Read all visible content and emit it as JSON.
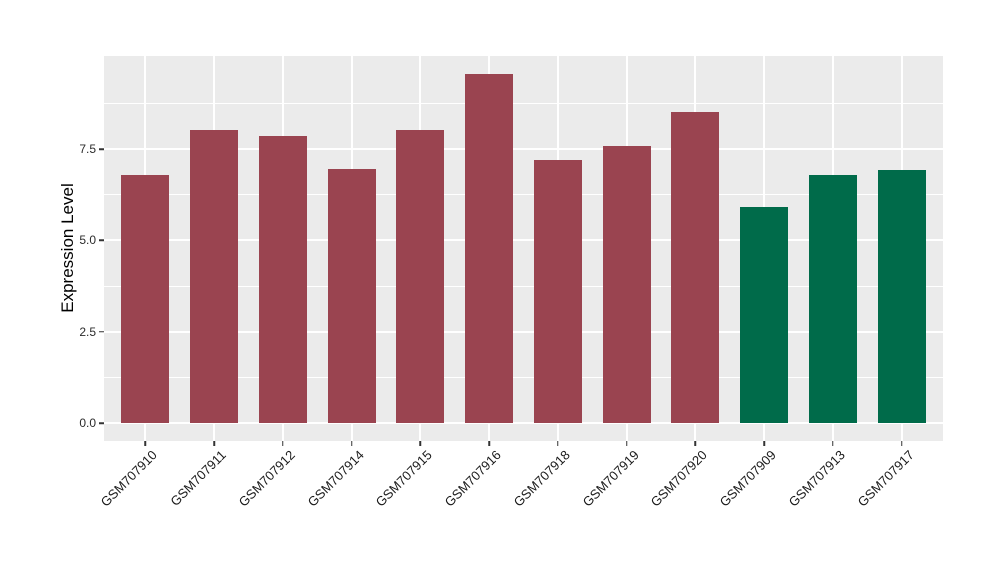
{
  "chart_data": {
    "type": "bar",
    "title": "",
    "xlabel": "",
    "ylabel": "Expression Level",
    "categories": [
      "GSM707910",
      "GSM707911",
      "GSM707912",
      "GSM707914",
      "GSM707915",
      "GSM707916",
      "GSM707918",
      "GSM707919",
      "GSM707920",
      "GSM707909",
      "GSM707913",
      "GSM707917"
    ],
    "values": [
      6.79,
      8.03,
      7.87,
      6.96,
      8.03,
      9.56,
      7.2,
      7.58,
      8.5,
      5.9,
      6.79,
      6.93
    ],
    "bar_colors": [
      "#9A4450",
      "#9A4450",
      "#9A4450",
      "#9A4450",
      "#9A4450",
      "#9A4450",
      "#9A4450",
      "#9A4450",
      "#9A4450",
      "#006B4A",
      "#006B4A",
      "#006B4A"
    ],
    "group_colors": {
      "maroon_group": "#9A4450",
      "green_group": "#006B4A"
    },
    "yaxis": {
      "tick_values": [
        0,
        2.5,
        5,
        7.5
      ],
      "tick_labels": [
        "0.0",
        "2.5",
        "5.0",
        "7.5"
      ],
      "minor_gridlines": [
        1.25,
        3.75,
        6.25,
        8.75
      ],
      "ylim": [
        0,
        10.05
      ]
    },
    "legend": false,
    "grid": true,
    "panel_background": "#EBEBEB",
    "gridline_color": "#FFFFFF",
    "tick_color": "#333333"
  }
}
